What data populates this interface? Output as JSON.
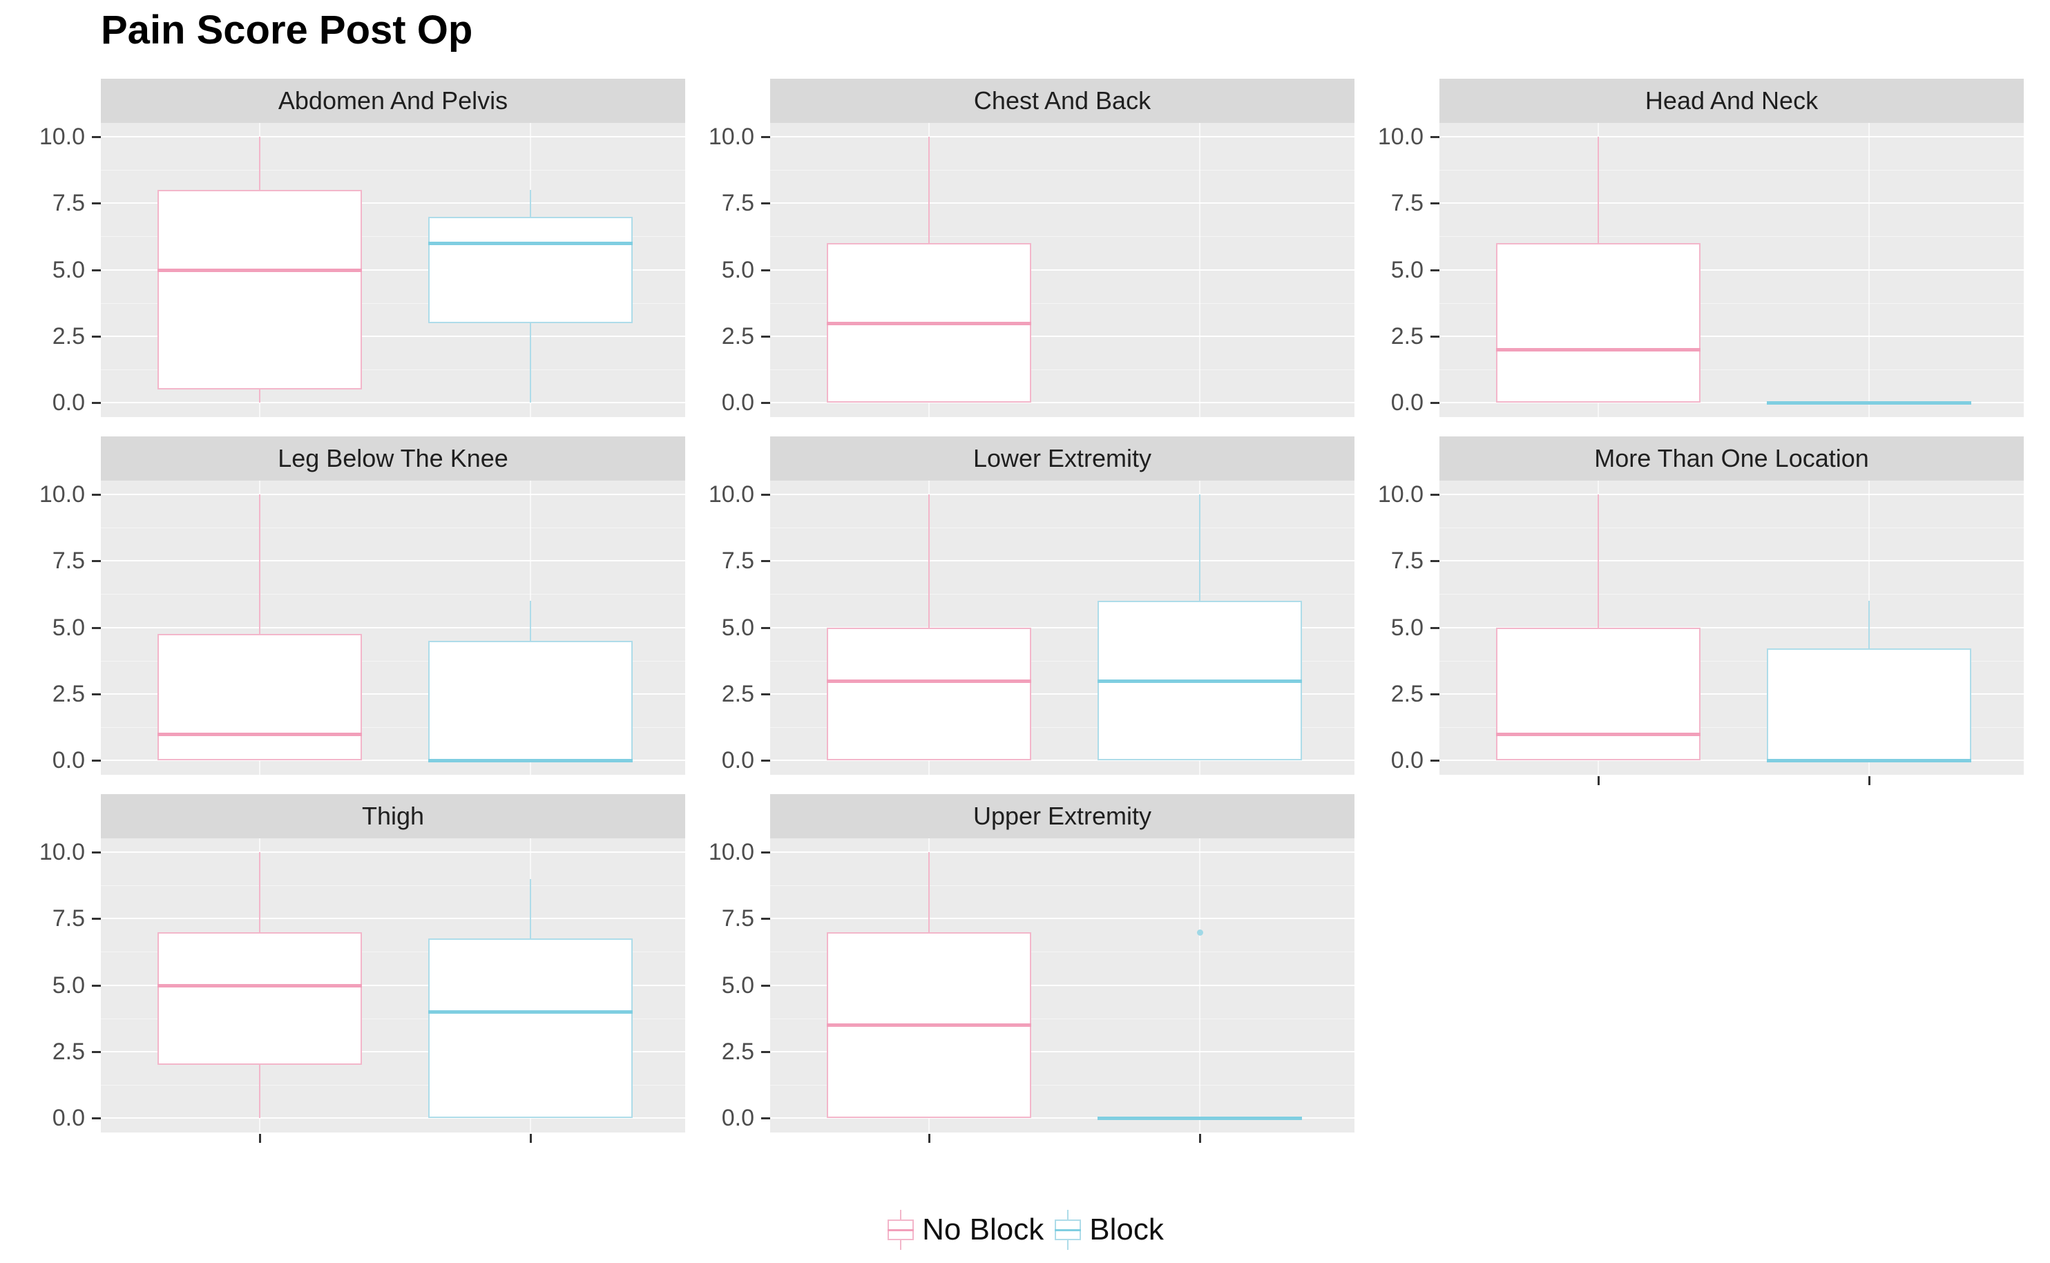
{
  "title": "Pain Score Post Op",
  "legend": {
    "items": [
      {
        "label": "No Block",
        "key": "no_block"
      },
      {
        "label": "Block",
        "key": "block"
      }
    ]
  },
  "palette": {
    "no_block_edge": "#f3b6ca",
    "no_block_median": "#f29fba",
    "block_edge": "#aedce9",
    "block_median": "#7fcee1",
    "outlier": "#9fd8e6",
    "panel_bg": "#ebebeb",
    "strip_bg": "#d9d9d9",
    "grid_major": "rgba(255,255,255,0.92)",
    "grid_minor": "rgba(255,255,255,0.5)",
    "axis_text": "#4d4d4d",
    "tick": "#333333",
    "title_color": "#000000"
  },
  "chart_data": {
    "type": "boxplot",
    "title": "Pain Score Post Op",
    "xlabel": "",
    "ylabel": "",
    "ylim": [
      0,
      10
    ],
    "yticks": [
      0.0,
      2.5,
      5.0,
      7.5,
      10.0
    ],
    "ytick_labels": [
      "0.0",
      "2.5",
      "5.0",
      "7.5",
      "10.0"
    ],
    "grid": "on",
    "legend_position": "bottom",
    "groups": [
      "No Block",
      "Block"
    ],
    "facets": [
      {
        "title": "Abdomen And Pelvis",
        "row": 0,
        "col": 0,
        "series": [
          {
            "group": "No Block",
            "min": 0,
            "q1": 0.5,
            "median": 5,
            "q3": 8,
            "max": 10,
            "outliers": []
          },
          {
            "group": "Block",
            "min": 0,
            "q1": 3,
            "median": 6,
            "q3": 7,
            "max": 8,
            "outliers": []
          }
        ]
      },
      {
        "title": "Chest And Back",
        "row": 0,
        "col": 1,
        "series": [
          {
            "group": "No Block",
            "min": 0,
            "q1": 0,
            "median": 3,
            "q3": 6,
            "max": 10,
            "outliers": []
          }
        ]
      },
      {
        "title": "Head And Neck",
        "row": 0,
        "col": 2,
        "series": [
          {
            "group": "No Block",
            "min": 0,
            "q1": 0,
            "median": 2,
            "q3": 6,
            "max": 10,
            "outliers": []
          },
          {
            "group": "Block",
            "min": 0,
            "q1": 0,
            "median": 0,
            "q3": 0,
            "max": 0,
            "flat": true,
            "outliers": []
          }
        ]
      },
      {
        "title": "Leg Below The Knee",
        "row": 1,
        "col": 0,
        "series": [
          {
            "group": "No Block",
            "min": 0,
            "q1": 0,
            "median": 1,
            "q3": 4.75,
            "max": 10,
            "outliers": []
          },
          {
            "group": "Block",
            "min": 0,
            "q1": 0,
            "median": 0,
            "q3": 4.5,
            "max": 6,
            "outliers": []
          }
        ]
      },
      {
        "title": "Lower Extremity",
        "row": 1,
        "col": 1,
        "series": [
          {
            "group": "No Block",
            "min": 0,
            "q1": 0,
            "median": 3,
            "q3": 5,
            "max": 10,
            "outliers": []
          },
          {
            "group": "Block",
            "min": 0,
            "q1": 0,
            "median": 3,
            "q3": 6,
            "max": 10,
            "outliers": []
          }
        ]
      },
      {
        "title": "More Than One Location",
        "row": 1,
        "col": 2,
        "series": [
          {
            "group": "No Block",
            "min": 0,
            "q1": 0,
            "median": 1,
            "q3": 5,
            "max": 10,
            "outliers": []
          },
          {
            "group": "Block",
            "min": 0,
            "q1": 0,
            "median": 0,
            "q3": 4.2,
            "max": 6,
            "outliers": []
          }
        ]
      },
      {
        "title": "Thigh",
        "row": 2,
        "col": 0,
        "series": [
          {
            "group": "No Block",
            "min": 0,
            "q1": 2,
            "median": 5,
            "q3": 7,
            "max": 10,
            "outliers": []
          },
          {
            "group": "Block",
            "min": 0,
            "q1": 0,
            "median": 4,
            "q3": 6.75,
            "max": 9,
            "outliers": []
          }
        ]
      },
      {
        "title": "Upper Extremity",
        "row": 2,
        "col": 1,
        "series": [
          {
            "group": "No Block",
            "min": 0,
            "q1": 0,
            "median": 3.5,
            "q3": 7,
            "max": 10,
            "outliers": []
          },
          {
            "group": "Block",
            "min": 0,
            "q1": 0,
            "median": 0,
            "q3": 0,
            "max": 0,
            "flat": true,
            "outliers": [
              7
            ]
          }
        ]
      }
    ]
  }
}
